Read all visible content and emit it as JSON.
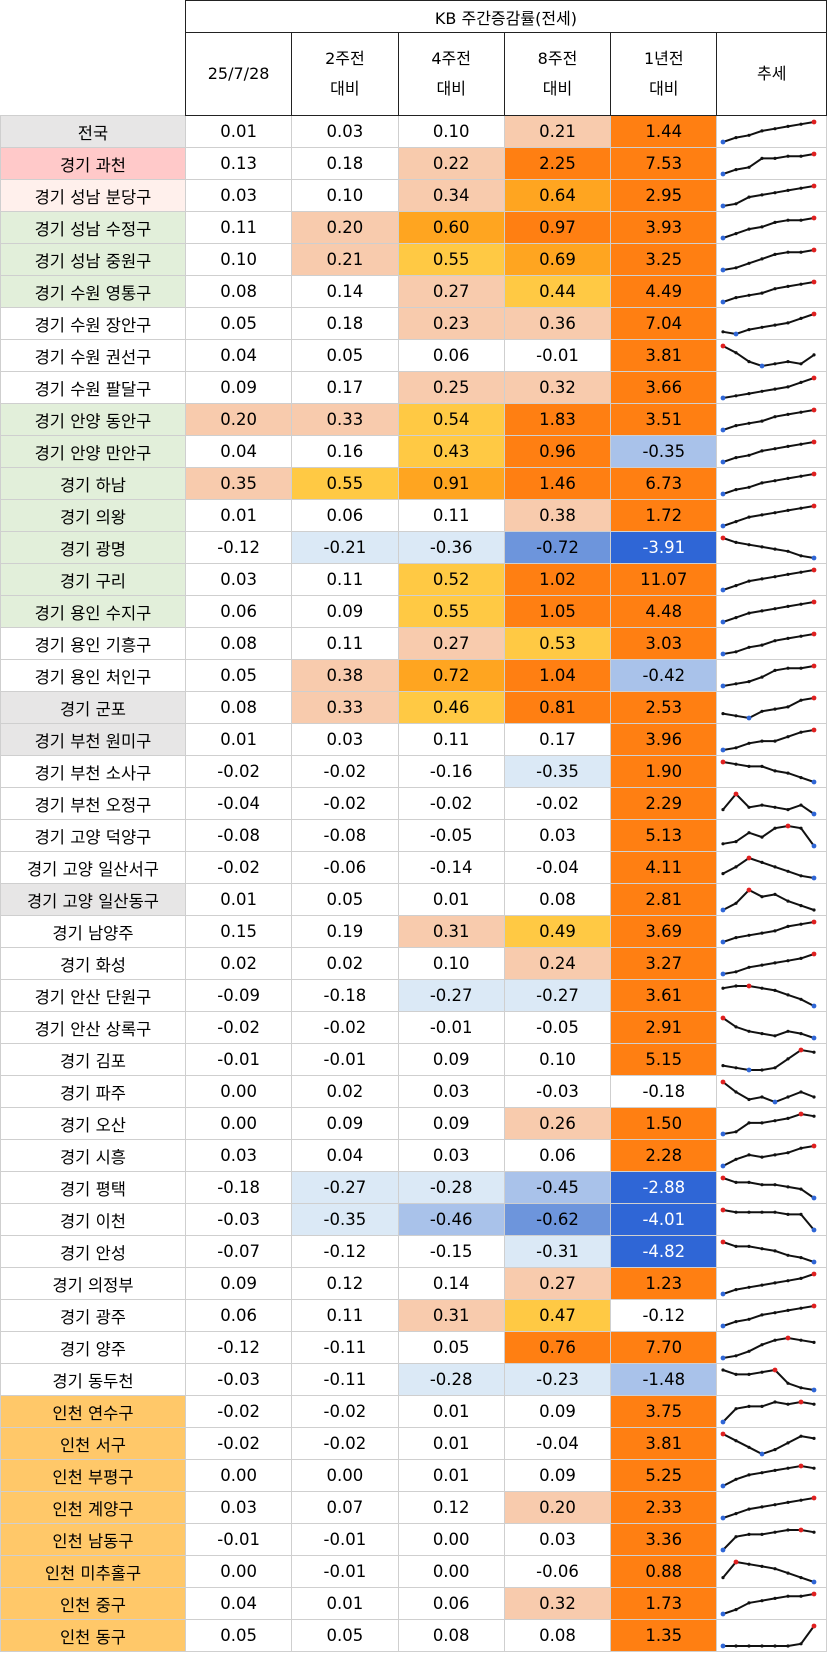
{
  "header": {
    "group_title": "KB 주간증감률(전세)",
    "columns": [
      {
        "line1": "25/7/28",
        "line2": ""
      },
      {
        "line1": "2주전",
        "line2": "대비"
      },
      {
        "line1": "4주전",
        "line2": "대비"
      },
      {
        "line1": "8주전",
        "line2": "대비"
      },
      {
        "line1": "1년전",
        "line2": "대비"
      },
      {
        "line1": "추세",
        "line2": ""
      }
    ]
  },
  "colors": {
    "neg_light": "#dbe9f6",
    "neg_mid": "#a9c2ea",
    "neg_strong": "#6d95dc",
    "neg_darkest": "#2f66d6",
    "pos_light": "#f8cbad",
    "pos_mid": "#ffc944",
    "pos_strong": "#ffa520",
    "pos_darkest": "#ff7f12",
    "name_pink": "#ffc9c9",
    "name_lightpink": "#fff0ec",
    "name_green": "#e2efda",
    "name_gray": "#e7e6e6",
    "name_orange": "#ffc869",
    "spark_line": "#111111",
    "spark_max": "#e02020",
    "spark_min": "#2f66d6"
  },
  "chart_data": {
    "type": "table",
    "title": "KB 주간증감률(전세)",
    "columns": [
      "25/7/28",
      "2주전 대비",
      "4주전 대비",
      "8주전 대비",
      "1년전 대비",
      "추세"
    ],
    "rows": [
      {
        "name": "전국",
        "name_bg": "gray",
        "values": [
          "0.01",
          "0.03",
          "0.10",
          "0.21",
          "1.44"
        ],
        "trend": [
          1,
          3,
          4,
          6,
          7,
          8,
          9,
          10
        ]
      },
      {
        "name": "경기 과천",
        "name_bg": "pink",
        "values": [
          "0.13",
          "0.18",
          "0.22",
          "2.25",
          "7.53"
        ],
        "trend": [
          1,
          3,
          4,
          8,
          8,
          9,
          9,
          10
        ]
      },
      {
        "name": "경기 성남 분당구",
        "name_bg": "lightpink",
        "values": [
          "0.03",
          "0.10",
          "0.34",
          "0.64",
          "2.95"
        ],
        "trend": [
          1,
          2,
          5,
          6,
          7,
          8,
          9,
          10
        ]
      },
      {
        "name": "경기 성남 수정구",
        "name_bg": "green",
        "values": [
          "0.11",
          "0.20",
          "0.60",
          "0.97",
          "3.93"
        ],
        "trend": [
          1,
          3,
          5,
          6,
          8,
          9,
          9,
          10
        ]
      },
      {
        "name": "경기 성남 중원구",
        "name_bg": "green",
        "values": [
          "0.10",
          "0.21",
          "0.55",
          "0.69",
          "3.25"
        ],
        "trend": [
          1,
          2,
          4,
          6,
          8,
          9,
          9,
          10
        ]
      },
      {
        "name": "경기 수원 영통구",
        "name_bg": "green",
        "values": [
          "0.08",
          "0.14",
          "0.27",
          "0.44",
          "4.49"
        ],
        "trend": [
          1,
          3,
          4,
          5,
          7,
          8,
          9,
          10
        ]
      },
      {
        "name": "경기 수원 장안구",
        "name_bg": "none",
        "values": [
          "0.05",
          "0.18",
          "0.23",
          "0.36",
          "7.04"
        ],
        "trend": [
          2,
          1,
          3,
          4,
          5,
          6,
          8,
          10
        ]
      },
      {
        "name": "경기 수원 권선구",
        "name_bg": "none",
        "values": [
          "0.04",
          "0.05",
          "0.06",
          "-0.01",
          "3.81"
        ],
        "trend": [
          10,
          7,
          3,
          1,
          2,
          3,
          2,
          6
        ]
      },
      {
        "name": "경기 수원 팔달구",
        "name_bg": "none",
        "values": [
          "0.09",
          "0.17",
          "0.25",
          "0.32",
          "3.66"
        ],
        "trend": [
          1,
          2,
          3,
          4,
          5,
          6,
          8,
          10
        ]
      },
      {
        "name": "경기 안양 동안구",
        "name_bg": "green",
        "values": [
          "0.20",
          "0.33",
          "0.54",
          "1.83",
          "3.51"
        ],
        "trend": [
          1,
          3,
          4,
          5,
          7,
          8,
          9,
          10
        ]
      },
      {
        "name": "경기 안양 만안구",
        "name_bg": "green",
        "values": [
          "0.04",
          "0.16",
          "0.43",
          "0.96",
          "-0.35"
        ],
        "trend": [
          1,
          3,
          4,
          6,
          7,
          8,
          9,
          10
        ]
      },
      {
        "name": "경기 하남",
        "name_bg": "green",
        "values": [
          "0.35",
          "0.55",
          "0.91",
          "1.46",
          "6.73"
        ],
        "trend": [
          1,
          3,
          4,
          6,
          7,
          8,
          9,
          10
        ]
      },
      {
        "name": "경기 의왕",
        "name_bg": "green",
        "values": [
          "0.01",
          "0.06",
          "0.11",
          "0.38",
          "1.72"
        ],
        "trend": [
          1,
          3,
          5,
          6,
          7,
          8,
          9,
          10
        ]
      },
      {
        "name": "경기 광명",
        "name_bg": "green",
        "values": [
          "-0.12",
          "-0.21",
          "-0.36",
          "-0.72",
          "-3.91"
        ],
        "trend": [
          10,
          8,
          7,
          6,
          5,
          4,
          2,
          1
        ]
      },
      {
        "name": "경기 구리",
        "name_bg": "green",
        "values": [
          "0.03",
          "0.11",
          "0.52",
          "1.02",
          "11.07"
        ],
        "trend": [
          1,
          3,
          5,
          6,
          7,
          8,
          9,
          10
        ]
      },
      {
        "name": "경기 용인 수지구",
        "name_bg": "green",
        "values": [
          "0.06",
          "0.09",
          "0.55",
          "1.05",
          "4.48"
        ],
        "trend": [
          1,
          3,
          5,
          6,
          7,
          8,
          9,
          10
        ]
      },
      {
        "name": "경기 용인 기흥구",
        "name_bg": "none",
        "values": [
          "0.08",
          "0.11",
          "0.27",
          "0.53",
          "3.03"
        ],
        "trend": [
          1,
          2,
          4,
          5,
          7,
          8,
          9,
          10
        ]
      },
      {
        "name": "경기 용인 처인구",
        "name_bg": "none",
        "values": [
          "0.05",
          "0.38",
          "0.72",
          "1.04",
          "-0.42"
        ],
        "trend": [
          1,
          2,
          3,
          5,
          8,
          9,
          9,
          10
        ]
      },
      {
        "name": "경기 군포",
        "name_bg": "gray",
        "values": [
          "0.08",
          "0.33",
          "0.46",
          "0.81",
          "2.53"
        ],
        "trend": [
          3,
          2,
          1,
          4,
          5,
          6,
          9,
          10
        ]
      },
      {
        "name": "경기 부천 원미구",
        "name_bg": "gray",
        "values": [
          "0.01",
          "0.03",
          "0.11",
          "0.17",
          "3.96"
        ],
        "trend": [
          1,
          2,
          4,
          5,
          5,
          7,
          9,
          10
        ]
      },
      {
        "name": "경기 부천 소사구",
        "name_bg": "none",
        "values": [
          "-0.02",
          "-0.02",
          "-0.16",
          "-0.35",
          "1.90"
        ],
        "trend": [
          10,
          9,
          8,
          8,
          6,
          5,
          3,
          1
        ]
      },
      {
        "name": "경기 부천 오정구",
        "name_bg": "none",
        "values": [
          "-0.04",
          "-0.02",
          "-0.02",
          "-0.02",
          "2.29"
        ],
        "trend": [
          3,
          10,
          4,
          5,
          4,
          3,
          5,
          1
        ]
      },
      {
        "name": "경기 고양 덕양구",
        "name_bg": "none",
        "values": [
          "-0.08",
          "-0.08",
          "-0.05",
          "0.03",
          "5.13"
        ],
        "trend": [
          2,
          3,
          7,
          5,
          9,
          10,
          9,
          1
        ]
      },
      {
        "name": "경기 고양 일산서구",
        "name_bg": "none",
        "values": [
          "-0.02",
          "-0.06",
          "-0.14",
          "-0.04",
          "4.11"
        ],
        "trend": [
          3,
          6,
          10,
          8,
          6,
          4,
          2,
          1
        ]
      },
      {
        "name": "경기 고양 일산동구",
        "name_bg": "gray",
        "values": [
          "0.01",
          "0.05",
          "0.01",
          "0.08",
          "2.81"
        ],
        "trend": [
          1,
          4,
          10,
          7,
          8,
          5,
          3,
          1
        ]
      },
      {
        "name": "경기 남양주",
        "name_bg": "none",
        "values": [
          "0.15",
          "0.19",
          "0.31",
          "0.49",
          "3.69"
        ],
        "trend": [
          1,
          3,
          4,
          5,
          6,
          8,
          9,
          10
        ]
      },
      {
        "name": "경기 화성",
        "name_bg": "none",
        "values": [
          "0.02",
          "0.02",
          "0.10",
          "0.24",
          "3.27"
        ],
        "trend": [
          1,
          2,
          4,
          5,
          6,
          7,
          8,
          10
        ]
      },
      {
        "name": "경기 안산 단원구",
        "name_bg": "none",
        "values": [
          "-0.09",
          "-0.18",
          "-0.27",
          "-0.27",
          "3.61"
        ],
        "trend": [
          9,
          10,
          10,
          9,
          8,
          6,
          4,
          1
        ]
      },
      {
        "name": "경기 안산 상록구",
        "name_bg": "none",
        "values": [
          "-0.02",
          "-0.02",
          "-0.01",
          "-0.05",
          "2.91"
        ],
        "trend": [
          10,
          6,
          4,
          3,
          2,
          4,
          3,
          1
        ]
      },
      {
        "name": "경기 김포",
        "name_bg": "none",
        "values": [
          "-0.01",
          "-0.01",
          "0.09",
          "0.10",
          "5.15"
        ],
        "trend": [
          3,
          2,
          1,
          1,
          2,
          6,
          10,
          9
        ]
      },
      {
        "name": "경기 파주",
        "name_bg": "none",
        "values": [
          "0.00",
          "0.02",
          "0.03",
          "-0.03",
          "-0.18"
        ],
        "trend": [
          10,
          6,
          3,
          4,
          2,
          4,
          6,
          4
        ]
      },
      {
        "name": "경기 오산",
        "name_bg": "none",
        "values": [
          "0.00",
          "0.09",
          "0.09",
          "0.26",
          "1.50"
        ],
        "trend": [
          1,
          2,
          6,
          6,
          7,
          8,
          10,
          9
        ]
      },
      {
        "name": "경기 시흥",
        "name_bg": "none",
        "values": [
          "0.03",
          "0.04",
          "0.03",
          "0.06",
          "2.28"
        ],
        "trend": [
          1,
          4,
          6,
          5,
          6,
          7,
          9,
          10
        ]
      },
      {
        "name": "경기 평택",
        "name_bg": "none",
        "values": [
          "-0.18",
          "-0.27",
          "-0.28",
          "-0.45",
          "-2.88"
        ],
        "trend": [
          10,
          8,
          8,
          7,
          7,
          6,
          5,
          1
        ]
      },
      {
        "name": "경기 이천",
        "name_bg": "none",
        "values": [
          "-0.03",
          "-0.35",
          "-0.46",
          "-0.62",
          "-4.01"
        ],
        "trend": [
          10,
          9,
          9,
          9,
          9,
          8,
          8,
          1
        ]
      },
      {
        "name": "경기 안성",
        "name_bg": "none",
        "values": [
          "-0.07",
          "-0.12",
          "-0.15",
          "-0.31",
          "-4.82"
        ],
        "trend": [
          10,
          8,
          8,
          7,
          6,
          4,
          3,
          1
        ]
      },
      {
        "name": "경기 의정부",
        "name_bg": "none",
        "values": [
          "0.09",
          "0.12",
          "0.14",
          "0.27",
          "1.23"
        ],
        "trend": [
          1,
          3,
          4,
          5,
          6,
          7,
          8,
          10
        ]
      },
      {
        "name": "경기 광주",
        "name_bg": "none",
        "values": [
          "0.06",
          "0.11",
          "0.31",
          "0.47",
          "-0.12"
        ],
        "trend": [
          1,
          3,
          4,
          6,
          7,
          8,
          9,
          10
        ]
      },
      {
        "name": "경기 양주",
        "name_bg": "none",
        "values": [
          "-0.12",
          "-0.11",
          "0.05",
          "0.76",
          "7.70"
        ],
        "trend": [
          1,
          2,
          4,
          7,
          9,
          10,
          9,
          8
        ]
      },
      {
        "name": "경기 동두천",
        "name_bg": "none",
        "values": [
          "-0.03",
          "-0.11",
          "-0.28",
          "-0.23",
          "-1.48"
        ],
        "trend": [
          10,
          8,
          8,
          9,
          10,
          4,
          2,
          1
        ]
      },
      {
        "name": "인천 연수구",
        "name_bg": "orange",
        "values": [
          "-0.02",
          "-0.02",
          "0.01",
          "0.09",
          "3.75"
        ],
        "trend": [
          1,
          7,
          8,
          8,
          10,
          9,
          10,
          9
        ]
      },
      {
        "name": "인천 서구",
        "name_bg": "orange",
        "values": [
          "-0.02",
          "-0.02",
          "0.01",
          "-0.04",
          "3.81"
        ],
        "trend": [
          10,
          7,
          4,
          1,
          3,
          6,
          9,
          8
        ]
      },
      {
        "name": "인천 부평구",
        "name_bg": "orange",
        "values": [
          "0.00",
          "0.00",
          "0.01",
          "0.09",
          "5.25"
        ],
        "trend": [
          1,
          4,
          6,
          7,
          8,
          9,
          10,
          9
        ]
      },
      {
        "name": "인천 계양구",
        "name_bg": "orange",
        "values": [
          "0.03",
          "0.07",
          "0.12",
          "0.20",
          "2.33"
        ],
        "trend": [
          1,
          3,
          5,
          6,
          7,
          8,
          9,
          10
        ]
      },
      {
        "name": "인천 남동구",
        "name_bg": "orange",
        "values": [
          "-0.01",
          "-0.01",
          "0.00",
          "0.03",
          "3.36"
        ],
        "trend": [
          1,
          7,
          8,
          8,
          9,
          10,
          10,
          9
        ]
      },
      {
        "name": "인천 미추홀구",
        "name_bg": "orange",
        "values": [
          "0.00",
          "-0.01",
          "0.00",
          "-0.06",
          "0.88"
        ],
        "trend": [
          3,
          10,
          9,
          8,
          7,
          5,
          3,
          1
        ]
      },
      {
        "name": "인천 중구",
        "name_bg": "orange",
        "values": [
          "0.04",
          "0.01",
          "0.06",
          "0.32",
          "1.73"
        ],
        "trend": [
          1,
          3,
          6,
          7,
          8,
          9,
          9,
          10
        ]
      },
      {
        "name": "인천 동구",
        "name_bg": "orange",
        "values": [
          "0.05",
          "0.05",
          "0.08",
          "0.08",
          "1.35"
        ],
        "trend": [
          1,
          1,
          1,
          1,
          1,
          1,
          2,
          10
        ]
      }
    ]
  }
}
